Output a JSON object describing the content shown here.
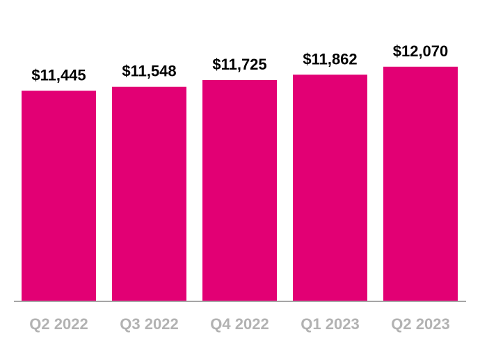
{
  "chart_data": {
    "type": "bar",
    "title": "",
    "xlabel": "",
    "ylabel": "",
    "categories": [
      "Q2 2022",
      "Q3 2022",
      "Q4 2022",
      "Q1 2023",
      "Q2 2023"
    ],
    "values": [
      11445,
      11548,
      11725,
      11862,
      12070
    ],
    "data_labels": [
      "$11,445",
      "$11,548",
      "$11,725",
      "$11,862",
      "$12,070"
    ],
    "ylim": [
      6000,
      13800
    ],
    "grid": false,
    "y_axis_visible": false,
    "colors": {
      "bar": "#e20074",
      "axis": "#a6a6a6",
      "category_label": "#b2b2b2",
      "data_label": "#000000"
    }
  }
}
